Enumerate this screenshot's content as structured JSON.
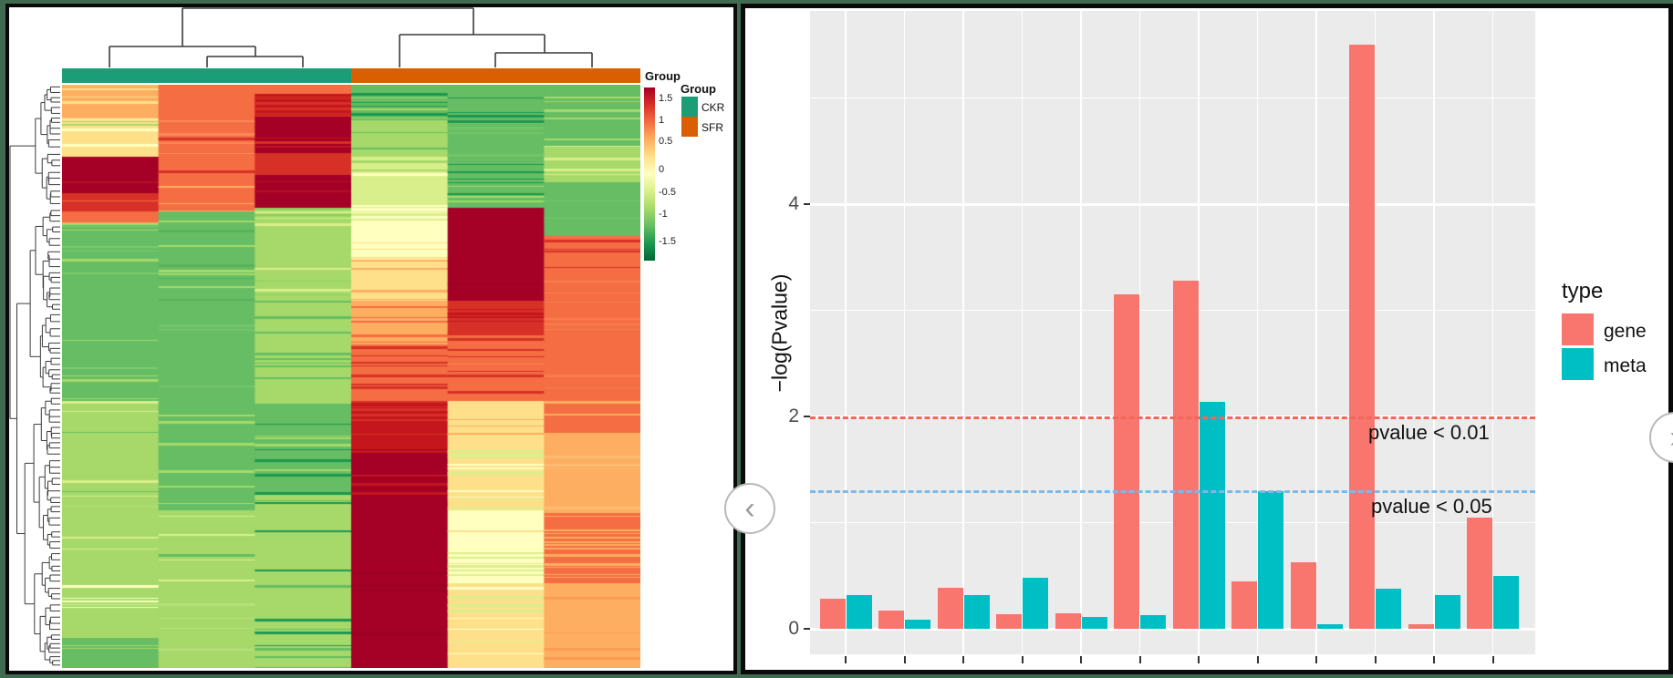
{
  "frame": {
    "background": "#406b50",
    "panel_border": "#0a0a0a"
  },
  "nav": {
    "prev_glyph": "‹",
    "next_glyph": "›"
  },
  "heatmap_panel": {
    "annotation_title": "Group",
    "legend_title": "Group",
    "groups": [
      {
        "label": "CKR",
        "color": "#1B9E77"
      },
      {
        "label": "SFR",
        "color": "#D95F02"
      }
    ],
    "scale_ticks": [
      "1.5",
      "1",
      "0.5",
      "0",
      "-0.5",
      "-1",
      "-1.5"
    ],
    "scale_gradient": [
      "#A50026",
      "#D73027",
      "#F46D43",
      "#FDAE61",
      "#FEE08B",
      "#FFFFBF",
      "#D9EF8B",
      "#A6D96A",
      "#66BD63",
      "#1A9850",
      "#006837"
    ]
  },
  "bar_panel": {
    "y_axis_title": "−log(Pvalue)",
    "y_ticks": [
      {
        "value": 0,
        "label": "0"
      },
      {
        "value": 2,
        "label": "2"
      },
      {
        "value": 4,
        "label": "4"
      }
    ],
    "threshold_lines": [
      {
        "label": "pvalue < 0.01",
        "value": 2.0,
        "color": "#F4655C"
      },
      {
        "label": "pvalue < 0.05",
        "value": 1.301,
        "color": "#7CB9E8"
      }
    ],
    "legend": {
      "title": "type",
      "entries": [
        {
          "label": "gene",
          "color": "#F8766D"
        },
        {
          "label": "meta",
          "color": "#00BFC4"
        }
      ]
    }
  },
  "chart_data": [
    {
      "type": "heatmap",
      "title": "Hierarchically clustered heatmap (rows = features, ~200; columns = 6 samples)",
      "columns_groups": [
        "CKR",
        "CKR",
        "CKR",
        "SFR",
        "SFR",
        "SFR"
      ],
      "column_annotation_colors": {
        "CKR": "#1B9E77",
        "SFR": "#D95F02"
      },
      "scale_range": [
        -1.5,
        1.5
      ],
      "legend_values": [
        1.5,
        1,
        0.5,
        0,
        -0.5,
        -1,
        -1.5
      ],
      "top_dendrogram_segments": [
        [
          200,
          9,
          519,
          9
        ],
        [
          200,
          9,
          200,
          51
        ],
        [
          120,
          51,
          280,
          51
        ],
        [
          120,
          51,
          120,
          74
        ],
        [
          280,
          51,
          280,
          62
        ],
        [
          227,
          62,
          332,
          62
        ],
        [
          227,
          62,
          227,
          74
        ],
        [
          332,
          62,
          332,
          74
        ],
        [
          519,
          9,
          519,
          38
        ],
        [
          438,
          38,
          597,
          38
        ],
        [
          438,
          38,
          438,
          74
        ],
        [
          597,
          38,
          597,
          58
        ],
        [
          543,
          58,
          649,
          58
        ],
        [
          543,
          58,
          543,
          74
        ],
        [
          649,
          58,
          649,
          74
        ]
      ],
      "row_cluster_split_fraction": 0.21,
      "column_bands": [
        {
          "bands": [
            {
              "f0": 0.0,
              "f1": 0.058,
              "base": "#FDAE61",
              "stripes": [
                "#FEE08B",
                "#FDBE71"
              ],
              "d": 0.45
            },
            {
              "f0": 0.058,
              "f1": 0.123,
              "base": "#FEE08B",
              "stripes": [
                "#D9EF8B",
                "#FFFFBF",
                "#A6D96A"
              ],
              "d": 0.5
            },
            {
              "f0": 0.123,
              "f1": 0.186,
              "base": "#A50026",
              "stripes": [
                "#B31027"
              ],
              "d": 0.15
            },
            {
              "f0": 0.186,
              "f1": 0.217,
              "base": "#D73027",
              "stripes": [
                "#F46D43"
              ],
              "d": 0.4
            },
            {
              "f0": 0.217,
              "f1": 0.237,
              "base": "#F46D43",
              "stripes": [
                "#FDAE61"
              ],
              "d": 0.3
            },
            {
              "f0": 0.237,
              "f1": 0.542,
              "base": "#66BD63",
              "stripes": [
                "#A6D96A",
                "#7BC96F"
              ],
              "d": 0.3
            },
            {
              "f0": 0.542,
              "f1": 0.698,
              "base": "#A6D96A",
              "stripes": [
                "#66BD63",
                "#D9EF8B"
              ],
              "d": 0.3
            },
            {
              "f0": 0.698,
              "f1": 0.855,
              "base": "#A6D96A",
              "stripes": [
                "#D9EF8B",
                "#B8E07A"
              ],
              "d": 0.25
            },
            {
              "f0": 0.855,
              "f1": 0.948,
              "base": "#A6D96A",
              "stripes": [
                "#FFFFBF",
                "#D9EF8B"
              ],
              "d": 0.2
            },
            {
              "f0": 0.948,
              "f1": 1.0,
              "base": "#66BD63",
              "stripes": [
                "#A6D96A"
              ],
              "d": 0.2
            }
          ]
        },
        {
          "bands": [
            {
              "f0": 0.0,
              "f1": 0.055,
              "base": "#F46D43",
              "stripes": [
                "#E85A38"
              ],
              "d": 0.2
            },
            {
              "f0": 0.055,
              "f1": 0.152,
              "base": "#F46D43",
              "stripes": [
                "#D73027",
                "#FB8858"
              ],
              "d": 0.35
            },
            {
              "f0": 0.152,
              "f1": 0.217,
              "base": "#F46D43",
              "stripes": [
                "#FDAE61"
              ],
              "d": 0.35
            },
            {
              "f0": 0.217,
              "f1": 0.37,
              "base": "#66BD63",
              "stripes": [
                "#A6D96A",
                "#58B25A"
              ],
              "d": 0.3
            },
            {
              "f0": 0.37,
              "f1": 0.542,
              "base": "#66BD63",
              "stripes": [
                "#74C46A"
              ],
              "d": 0.2
            },
            {
              "f0": 0.542,
              "f1": 0.73,
              "base": "#66BD63",
              "stripes": [
                "#A6D96A"
              ],
              "d": 0.3
            },
            {
              "f0": 0.73,
              "f1": 0.855,
              "base": "#A6D96A",
              "stripes": [
                "#66BD63",
                "#D9EF8B"
              ],
              "d": 0.3
            },
            {
              "f0": 0.855,
              "f1": 1.0,
              "base": "#A6D96A",
              "stripes": [
                "#B8E07A"
              ],
              "d": 0.2
            }
          ]
        },
        {
          "bands": [
            {
              "f0": 0.0,
              "f1": 0.016,
              "base": "#F46D43",
              "stripes": [],
              "d": 0
            },
            {
              "f0": 0.016,
              "f1": 0.055,
              "base": "#C4161C",
              "stripes": [
                "#D73027"
              ],
              "d": 0.4
            },
            {
              "f0": 0.055,
              "f1": 0.117,
              "base": "#A50026",
              "stripes": [
                "#C4161C",
                "#D73027"
              ],
              "d": 0.4
            },
            {
              "f0": 0.117,
              "f1": 0.155,
              "base": "#D73027",
              "stripes": [
                "#C4161C"
              ],
              "d": 0.3
            },
            {
              "f0": 0.155,
              "f1": 0.211,
              "base": "#A50026",
              "stripes": [
                "#B31027"
              ],
              "d": 0.2
            },
            {
              "f0": 0.211,
              "f1": 0.37,
              "base": "#A6D96A",
              "stripes": [
                "#D9EF8B",
                "#8FCF5C"
              ],
              "d": 0.35
            },
            {
              "f0": 0.37,
              "f1": 0.542,
              "base": "#A6D96A",
              "stripes": [
                "#66BD63"
              ],
              "d": 0.3
            },
            {
              "f0": 0.542,
              "f1": 0.698,
              "base": "#66BD63",
              "stripes": [
                "#A6D96A",
                "#1A9850"
              ],
              "d": 0.3
            },
            {
              "f0": 0.698,
              "f1": 0.855,
              "base": "#A6D96A",
              "stripes": [
                "#66BD63",
                "#1A9850"
              ],
              "d": 0.35
            },
            {
              "f0": 0.855,
              "f1": 1.0,
              "base": "#A6D96A",
              "stripes": [
                "#1A9850",
                "#66BD63"
              ],
              "d": 0.3
            }
          ]
        },
        {
          "bands": [
            {
              "f0": 0.0,
              "f1": 0.058,
              "base": "#66BD63",
              "stripes": [
                "#1A9850",
                "#A6D96A"
              ],
              "d": 0.4
            },
            {
              "f0": 0.058,
              "f1": 0.123,
              "base": "#A6D96A",
              "stripes": [
                "#66BD63"
              ],
              "d": 0.3
            },
            {
              "f0": 0.123,
              "f1": 0.211,
              "base": "#D9EF8B",
              "stripes": [
                "#FFFFBF",
                "#A6D96A"
              ],
              "d": 0.4
            },
            {
              "f0": 0.211,
              "f1": 0.3,
              "base": "#FFFFBF",
              "stripes": [
                "#FEE08B",
                "#D9EF8B"
              ],
              "d": 0.4
            },
            {
              "f0": 0.3,
              "f1": 0.37,
              "base": "#FEE08B",
              "stripes": [
                "#FDAE61"
              ],
              "d": 0.35
            },
            {
              "f0": 0.37,
              "f1": 0.448,
              "base": "#FDAE61",
              "stripes": [
                "#F46D43"
              ],
              "d": 0.35
            },
            {
              "f0": 0.448,
              "f1": 0.542,
              "base": "#F46D43",
              "stripes": [
                "#D73027"
              ],
              "d": 0.35
            },
            {
              "f0": 0.542,
              "f1": 0.62,
              "base": "#C4161C",
              "stripes": [
                "#D73027"
              ],
              "d": 0.35
            },
            {
              "f0": 0.62,
              "f1": 0.73,
              "base": "#A50026",
              "stripes": [
                "#C4161C"
              ],
              "d": 0.3
            },
            {
              "f0": 0.73,
              "f1": 1.0,
              "base": "#A50026",
              "stripes": [
                "#9B0024"
              ],
              "d": 0.12
            }
          ]
        },
        {
          "bands": [
            {
              "f0": 0.0,
              "f1": 0.066,
              "base": "#66BD63",
              "stripes": [
                "#1A9850"
              ],
              "d": 0.35
            },
            {
              "f0": 0.066,
              "f1": 0.128,
              "base": "#66BD63",
              "stripes": [
                "#74C46A"
              ],
              "d": 0.2
            },
            {
              "f0": 0.128,
              "f1": 0.211,
              "base": "#66BD63",
              "stripes": [
                "#1A9850",
                "#A6D96A"
              ],
              "d": 0.35
            },
            {
              "f0": 0.211,
              "f1": 0.37,
              "base": "#A50026",
              "stripes": [
                "#9B0024"
              ],
              "d": 0.1
            },
            {
              "f0": 0.37,
              "f1": 0.425,
              "base": "#D73027",
              "stripes": [
                "#C4161C"
              ],
              "d": 0.3
            },
            {
              "f0": 0.425,
              "f1": 0.542,
              "base": "#F46D43",
              "stripes": [
                "#D73027",
                "#FB8858"
              ],
              "d": 0.35
            },
            {
              "f0": 0.542,
              "f1": 0.605,
              "base": "#FEE08B",
              "stripes": [
                "#FDAE61"
              ],
              "d": 0.35
            },
            {
              "f0": 0.605,
              "f1": 0.73,
              "base": "#FEE08B",
              "stripes": [
                "#FFFFBF",
                "#D9EF8B"
              ],
              "d": 0.45
            },
            {
              "f0": 0.73,
              "f1": 0.855,
              "base": "#FFFFBF",
              "stripes": [
                "#D9EF8B",
                "#FEE08B"
              ],
              "d": 0.4
            },
            {
              "f0": 0.855,
              "f1": 1.0,
              "base": "#FEE08B",
              "stripes": [
                "#FFFFBF",
                "#D9EF8B"
              ],
              "d": 0.4
            }
          ]
        },
        {
          "bands": [
            {
              "f0": 0.0,
              "f1": 0.105,
              "base": "#66BD63",
              "stripes": [
                "#A6D96A"
              ],
              "d": 0.35
            },
            {
              "f0": 0.105,
              "f1": 0.167,
              "base": "#A6D96A",
              "stripes": [
                "#D9EF8B"
              ],
              "d": 0.35
            },
            {
              "f0": 0.167,
              "f1": 0.26,
              "base": "#66BD63",
              "stripes": [
                "#74C46A"
              ],
              "d": 0.2
            },
            {
              "f0": 0.26,
              "f1": 0.323,
              "base": "#F46D43",
              "stripes": [
                "#D73027"
              ],
              "d": 0.3
            },
            {
              "f0": 0.323,
              "f1": 0.542,
              "base": "#F46D43",
              "stripes": [
                "#F87D50"
              ],
              "d": 0.15
            },
            {
              "f0": 0.542,
              "f1": 0.597,
              "base": "#F46D43",
              "stripes": [
                "#FDAE61"
              ],
              "d": 0.35
            },
            {
              "f0": 0.597,
              "f1": 0.73,
              "base": "#FDAE61",
              "stripes": [
                "#FDBE71"
              ],
              "d": 0.2
            },
            {
              "f0": 0.73,
              "f1": 0.855,
              "base": "#F46D43",
              "stripes": [
                "#FDAE61"
              ],
              "d": 0.35
            },
            {
              "f0": 0.855,
              "f1": 1.0,
              "base": "#FDAE61",
              "stripes": [
                "#FB9B55"
              ],
              "d": 0.15
            }
          ]
        }
      ]
    },
    {
      "type": "bar",
      "title": "−log(Pvalue) of gene vs meta per pathway (x tick labels cropped)",
      "categories": [
        "",
        "",
        "",
        "",
        "",
        "",
        "",
        "",
        "",
        "",
        "",
        ""
      ],
      "series": [
        {
          "name": "gene",
          "color": "#F8766D",
          "values": [
            0.28,
            0.17,
            0.39,
            0.14,
            0.15,
            3.15,
            3.28,
            0.45,
            0.63,
            5.5,
            0.04,
            1.05
          ]
        },
        {
          "name": "meta",
          "color": "#00BFC4",
          "values": [
            0.32,
            0.09,
            0.32,
            0.48,
            0.11,
            0.13,
            2.14,
            1.3,
            0.04,
            0.38,
            0.32,
            0.5
          ]
        }
      ],
      "ylabel": "−log(Pvalue)",
      "ylim": [
        0,
        5.82
      ],
      "grid": true,
      "legend_position": "right",
      "reference_lines": [
        {
          "y": 2.0,
          "style": "dashed",
          "color": "#F4655C",
          "annotation": "pvalue < 0.01"
        },
        {
          "y": 1.301,
          "style": "dashed",
          "color": "#7CB9E8",
          "annotation": "pvalue < 0.05"
        }
      ]
    }
  ]
}
